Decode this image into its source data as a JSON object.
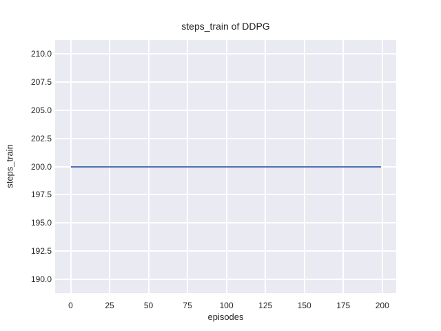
{
  "chart_data": {
    "type": "line",
    "title": "steps_train of DDPG",
    "xlabel": "episodes",
    "ylabel": "steps_train",
    "x_ticks": [
      0,
      25,
      50,
      75,
      100,
      125,
      150,
      175,
      200
    ],
    "y_ticks": [
      190.0,
      192.5,
      195.0,
      197.5,
      200.0,
      202.5,
      205.0,
      207.5,
      210.0
    ],
    "y_tick_labels": [
      "190.0",
      "192.5",
      "195.0",
      "197.5",
      "200.0",
      "202.5",
      "205.0",
      "207.5",
      "210.0"
    ],
    "x_tick_labels": [
      "0",
      "25",
      "50",
      "75",
      "100",
      "125",
      "150",
      "175",
      "200"
    ],
    "xlim": [
      -9.95,
      208.95
    ],
    "ylim": [
      188.8,
      211.2
    ],
    "grid": true,
    "legend_position": "none",
    "plot_background_color": "#EAEAF2",
    "grid_color": "#FFFFFF",
    "figure_background_color": "#FFFFFF",
    "series": [
      {
        "name": "steps_train",
        "color": "#4C72B0",
        "x": [
          0,
          199
        ],
        "y": [
          200,
          200
        ]
      }
    ]
  }
}
